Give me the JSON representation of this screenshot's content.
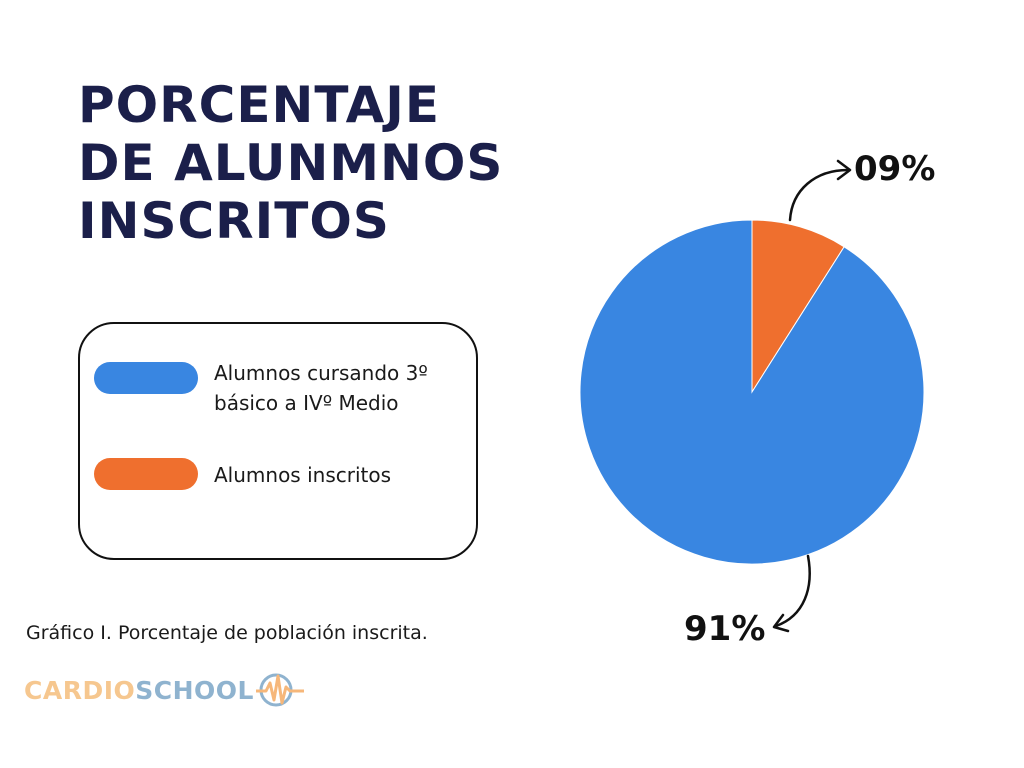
{
  "title_lines": [
    "PORCENTAJE",
    "DE ALUNMNOS",
    "INSCRITOS"
  ],
  "legend": [
    {
      "label": "Alumnos cursando 3º básico a IVº Medio",
      "color": "#3986e1"
    },
    {
      "label": "Alumnos inscritos",
      "color": "#ef6f2e"
    }
  ],
  "caption": "Gráfico I. Porcentaje de población inscrita.",
  "logo": {
    "part1": "CARDIO",
    "part2": "SCHOOL",
    "icon": "heartbeat-circle-icon"
  },
  "chart_data": {
    "type": "pie",
    "title": "PORCENTAJE DE ALUNMNOS INSCRITOS",
    "slices": [
      {
        "label": "Alumnos inscritos",
        "value": 9,
        "display": "09%",
        "color": "#ef6f2e"
      },
      {
        "label": "Alumnos cursando 3º básico a IVº Medio",
        "value": 91,
        "display": "91%",
        "color": "#3986e1"
      }
    ],
    "legend_position": "left"
  }
}
